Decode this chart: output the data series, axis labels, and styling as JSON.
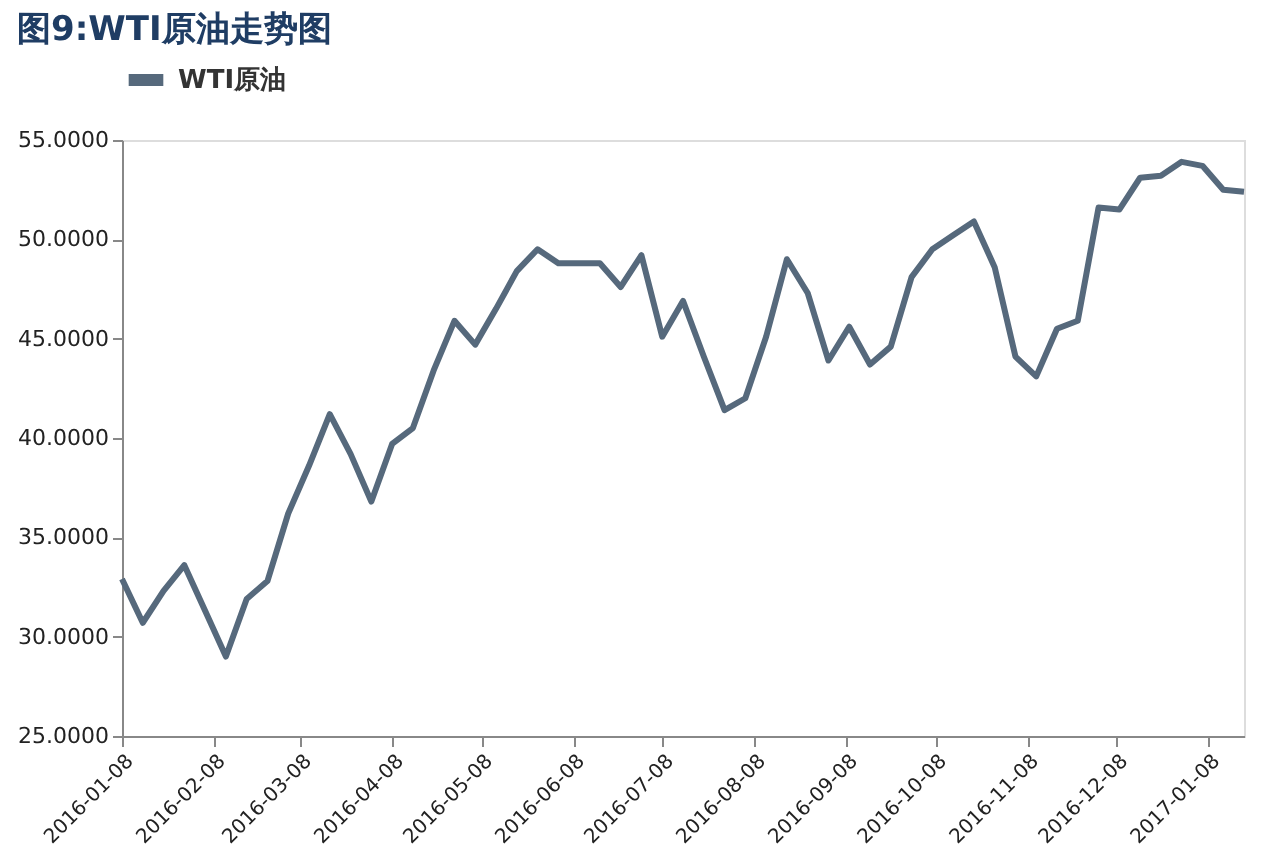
{
  "chart_data": {
    "type": "line",
    "title": "图9:WTI原油走势图",
    "x": [
      "2016-01-08",
      "2016-01-15",
      "2016-01-22",
      "2016-01-29",
      "2016-02-05",
      "2016-02-12",
      "2016-02-19",
      "2016-02-26",
      "2016-03-04",
      "2016-03-11",
      "2016-03-18",
      "2016-03-25",
      "2016-04-01",
      "2016-04-08",
      "2016-04-15",
      "2016-04-22",
      "2016-04-29",
      "2016-05-06",
      "2016-05-13",
      "2016-05-20",
      "2016-05-27",
      "2016-06-03",
      "2016-06-10",
      "2016-06-17",
      "2016-06-24",
      "2016-07-01",
      "2016-07-08",
      "2016-07-15",
      "2016-07-22",
      "2016-07-29",
      "2016-08-05",
      "2016-08-12",
      "2016-08-19",
      "2016-08-26",
      "2016-09-02",
      "2016-09-09",
      "2016-09-16",
      "2016-09-23",
      "2016-09-30",
      "2016-10-07",
      "2016-10-14",
      "2016-10-21",
      "2016-10-28",
      "2016-11-04",
      "2016-11-11",
      "2016-11-18",
      "2016-11-25",
      "2016-12-02",
      "2016-12-09",
      "2016-12-16",
      "2016-12-23",
      "2016-12-30",
      "2017-01-06",
      "2017-01-13",
      "2017-01-20"
    ],
    "series": [
      {
        "name": "WTI原油",
        "color": "#56697c",
        "values": [
          32.9,
          30.7,
          32.3,
          33.6,
          31.3,
          29.0,
          31.9,
          32.8,
          36.2,
          38.6,
          41.2,
          39.2,
          36.8,
          39.7,
          40.5,
          43.4,
          45.9,
          44.7,
          46.5,
          48.4,
          49.5,
          48.8,
          48.8,
          48.8,
          47.6,
          49.2,
          45.1,
          46.9,
          44.1,
          41.4,
          42.0,
          45.1,
          49.0,
          47.3,
          43.9,
          45.6,
          43.7,
          44.6,
          48.1,
          49.5,
          50.2,
          50.9,
          48.6,
          44.1,
          43.1,
          45.5,
          45.9,
          51.6,
          51.5,
          53.1,
          53.2,
          53.9,
          53.7,
          52.5,
          52.4
        ]
      }
    ],
    "xlim": [
      "2016-01-08",
      "2017-01-20"
    ],
    "xticks": [
      "2016-01-08",
      "2016-02-08",
      "2016-03-08",
      "2016-04-08",
      "2016-05-08",
      "2016-06-08",
      "2016-07-08",
      "2016-08-08",
      "2016-09-08",
      "2016-10-08",
      "2016-11-08",
      "2016-12-08",
      "2017-01-08"
    ],
    "ylim": [
      25,
      55
    ],
    "yticks": [
      {
        "value": 25,
        "label": "25.0000"
      },
      {
        "value": 30,
        "label": "30.0000"
      },
      {
        "value": 35,
        "label": "35.0000"
      },
      {
        "value": 40,
        "label": "40.0000"
      },
      {
        "value": 45,
        "label": "45.0000"
      },
      {
        "value": 50,
        "label": "50.0000"
      },
      {
        "value": 55,
        "label": "55.0000"
      }
    ],
    "grid": false,
    "legend": "top",
    "marker": "none",
    "line_style": "solid"
  }
}
